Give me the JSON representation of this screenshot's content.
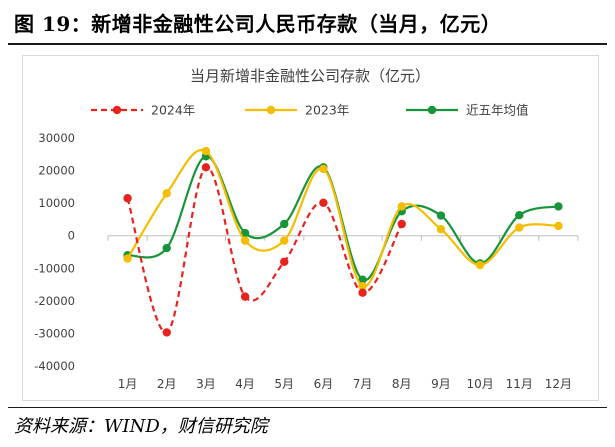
{
  "figure": {
    "title": "图 19：新增非金融性公司人民币存款（当月，亿元）",
    "source": "资料来源：WIND，财信研究院"
  },
  "chart_data": {
    "type": "line",
    "title": "当月新增非金融性公司存款（亿元）",
    "xlabel": "",
    "ylabel": "",
    "categories": [
      "1月",
      "2月",
      "3月",
      "4月",
      "5月",
      "6月",
      "7月",
      "8月",
      "9月",
      "10月",
      "11月",
      "12月"
    ],
    "ylim": [
      -40000,
      30000
    ],
    "yticks": [
      30000,
      20000,
      10000,
      0,
      -10000,
      -20000,
      -30000,
      -40000
    ],
    "ytick_labels": [
      "30000",
      "20000",
      "10000",
      "0",
      "-10000",
      "-20000",
      "-30000",
      "-40000"
    ],
    "grid": false,
    "legend_position": "top",
    "series": [
      {
        "name": "2024年",
        "color": "#e8231e",
        "dash": true,
        "values": [
          11500,
          -29700,
          21000,
          -18700,
          -8000,
          10100,
          -17500,
          3600,
          null,
          null,
          null,
          null
        ]
      },
      {
        "name": "2023年",
        "color": "#f5bd02",
        "dash": false,
        "values": [
          -7000,
          13000,
          26000,
          -1500,
          -1500,
          20500,
          -15500,
          9000,
          2000,
          -9000,
          2500,
          3000
        ]
      },
      {
        "name": "近五年均值",
        "color": "#18943b",
        "dash": false,
        "values": [
          -6000,
          -3800,
          24400,
          800,
          3600,
          21000,
          -13500,
          7500,
          6200,
          -8500,
          6300,
          9000
        ]
      }
    ]
  }
}
